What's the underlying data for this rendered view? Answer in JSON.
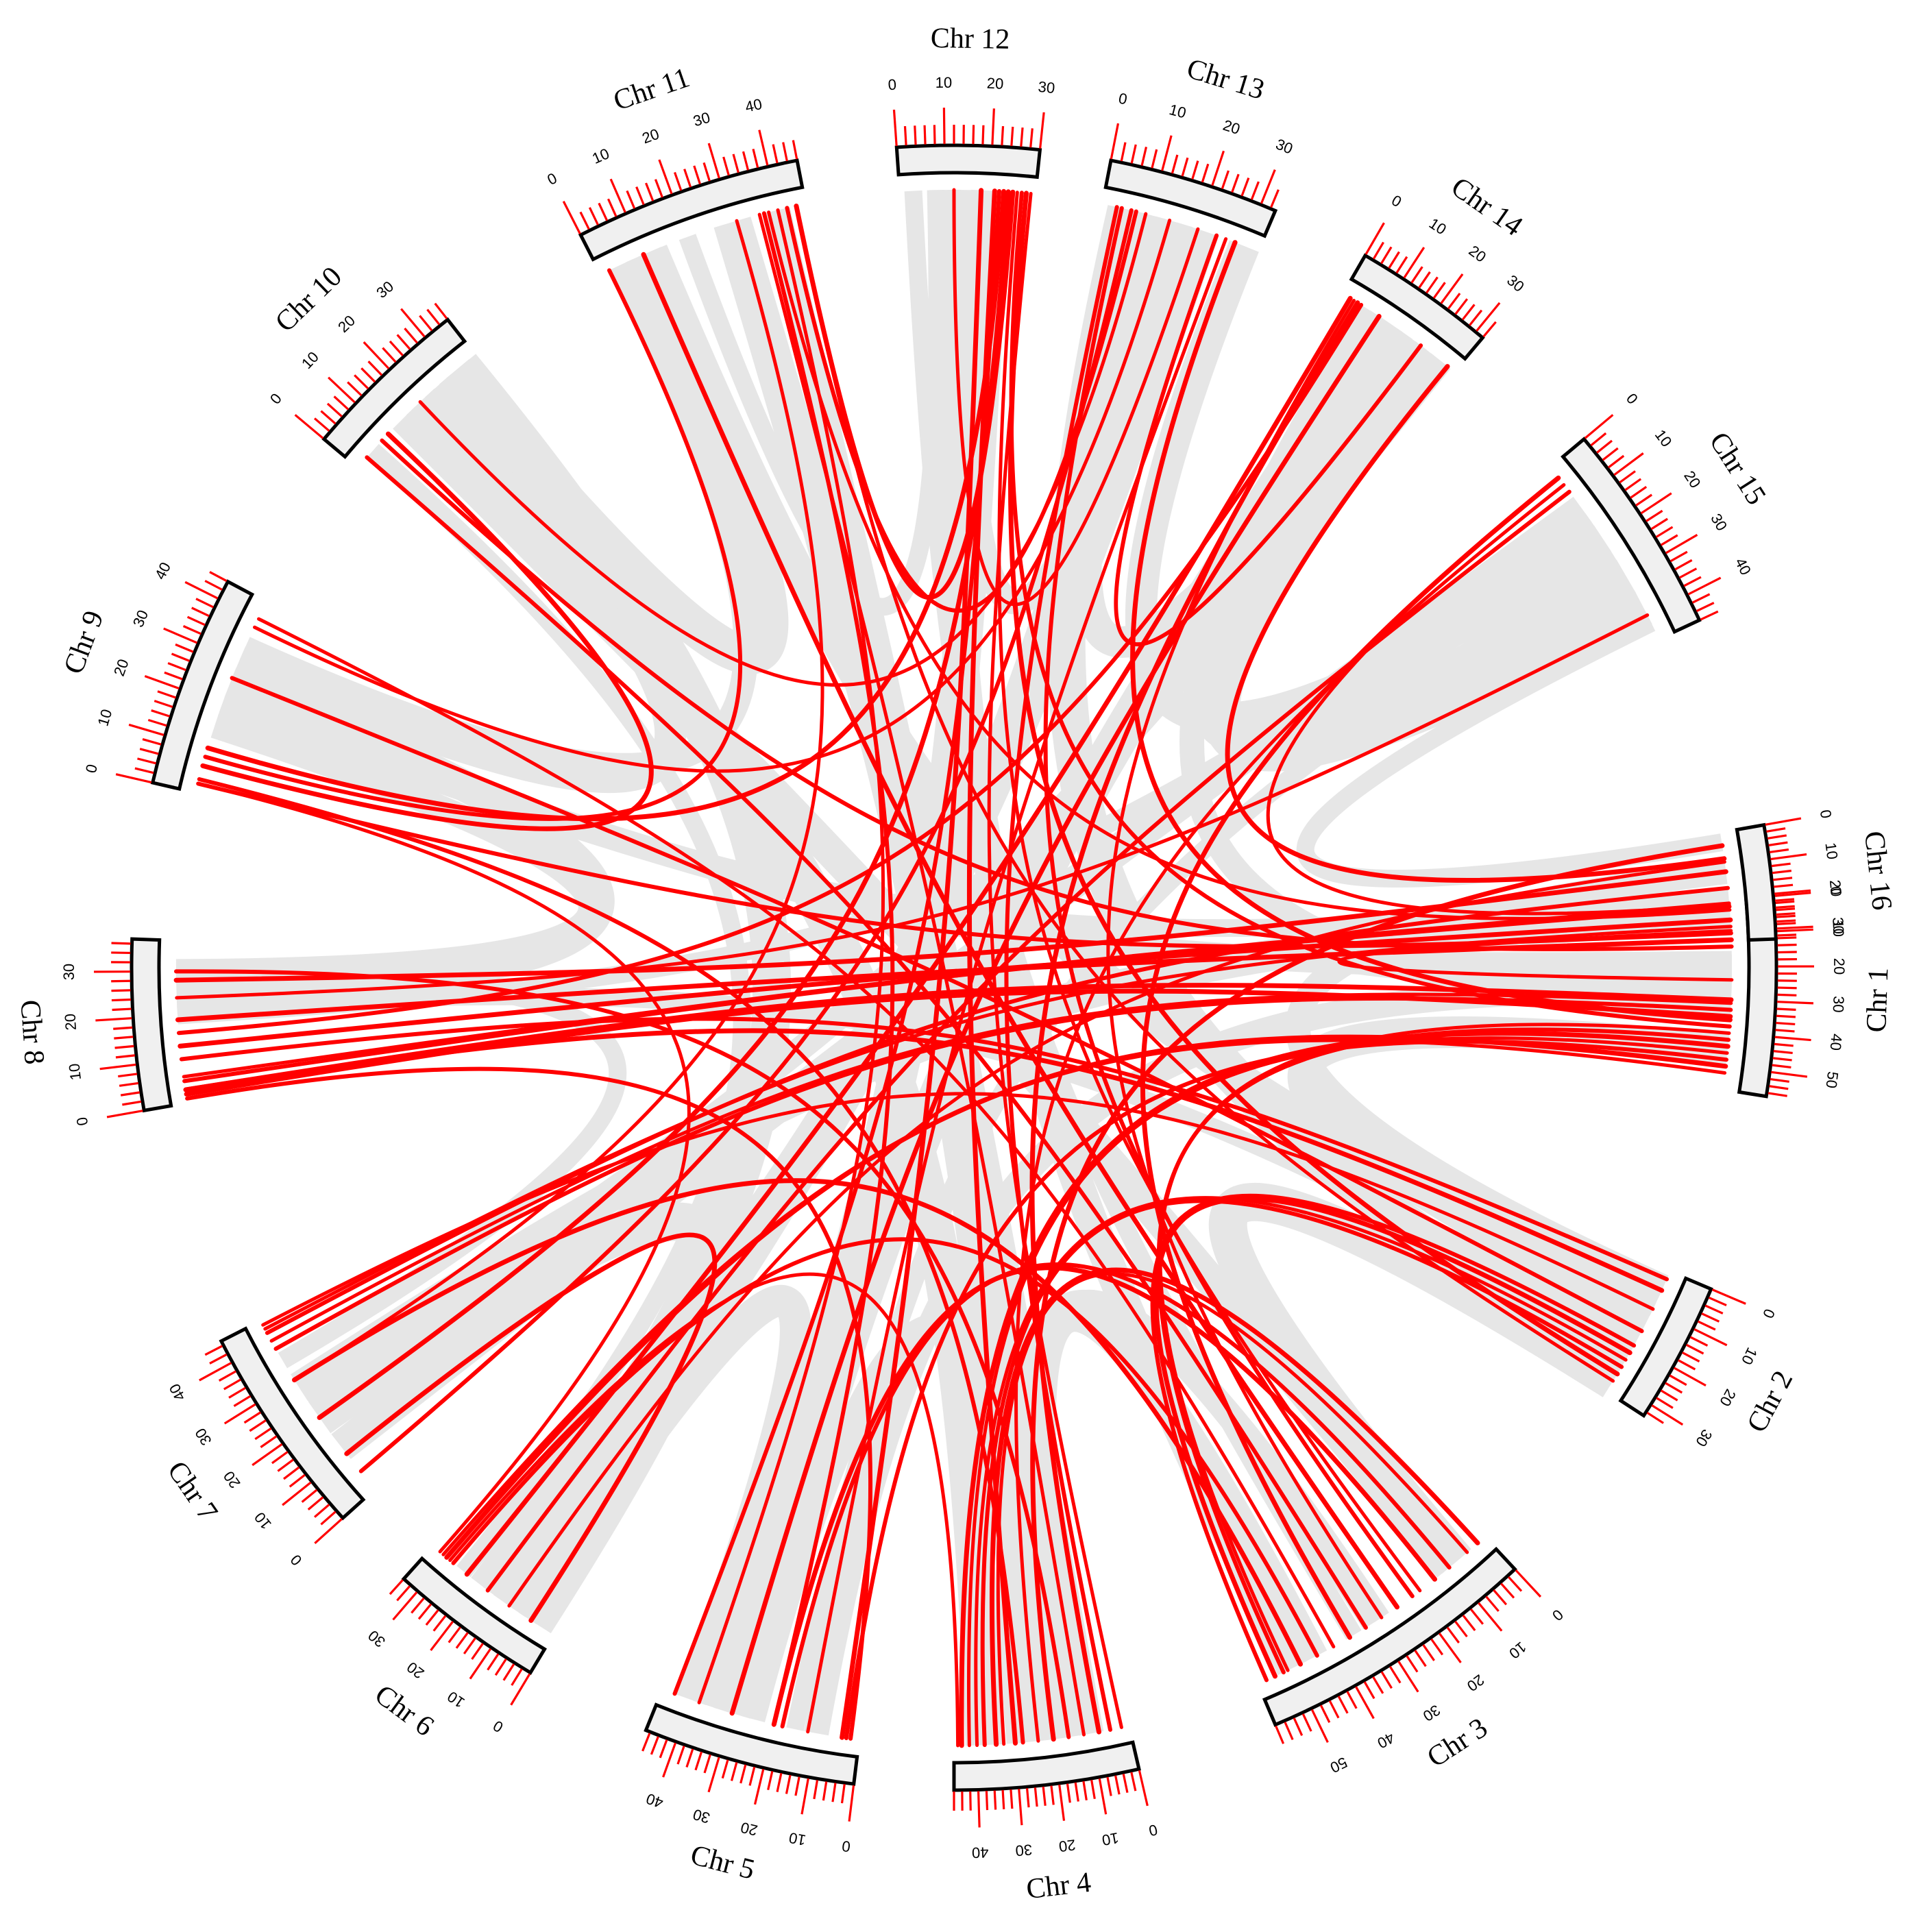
{
  "diagram": {
    "type": "circos-synteny",
    "colors": {
      "chromosome_fill": "#f0f0f0",
      "chromosome_outline": "#000000",
      "tick_color": "#ff0000",
      "background_link_color": "#e6e6e6",
      "highlight_link_color": "#ff0000"
    },
    "chromosomes": [
      {
        "id": "Chr 1",
        "label": "Chr 1",
        "length": 57,
        "ticks": [
          "0",
          "10",
          "20",
          "30",
          "40",
          "50"
        ]
      },
      {
        "id": "Chr 2",
        "label": "Chr 2",
        "length": 33,
        "ticks": [
          "0",
          "10",
          "20",
          "30"
        ]
      },
      {
        "id": "Chr 3",
        "label": "Chr 3",
        "length": 58,
        "ticks": [
          "0",
          "10",
          "20",
          "30",
          "40",
          "50"
        ]
      },
      {
        "id": "Chr 4",
        "label": "Chr 4",
        "length": 46,
        "ticks": [
          "0",
          "10",
          "20",
          "30",
          "40"
        ]
      },
      {
        "id": "Chr 5",
        "label": "Chr 5",
        "length": 47,
        "ticks": [
          "0",
          "10",
          "20",
          "30",
          "40"
        ]
      },
      {
        "id": "Chr 6",
        "label": "Chr 6",
        "length": 34,
        "ticks": [
          "0",
          "10",
          "20",
          "30"
        ]
      },
      {
        "id": "Chr 7",
        "label": "Chr 7",
        "length": 45,
        "ticks": [
          "0",
          "10",
          "20",
          "30",
          "40"
        ]
      },
      {
        "id": "Chr 8",
        "label": "Chr 8",
        "length": 37,
        "ticks": [
          "0",
          "10",
          "20",
          "30"
        ]
      },
      {
        "id": "Chr 9",
        "label": "Chr 9",
        "length": 44,
        "ticks": [
          "0",
          "10",
          "20",
          "30",
          "40"
        ]
      },
      {
        "id": "Chr 10",
        "label": "Chr 10",
        "length": 36,
        "ticks": [
          "0",
          "10",
          "20",
          "30"
        ]
      },
      {
        "id": "Chr 11",
        "label": "Chr 11",
        "length": 46,
        "ticks": [
          "0",
          "10",
          "20",
          "30",
          "40"
        ]
      },
      {
        "id": "Chr 12",
        "label": "Chr 12",
        "length": 30,
        "ticks": [
          "0",
          "10",
          "20",
          "30"
        ]
      },
      {
        "id": "Chr 13",
        "label": "Chr 13",
        "length": 33,
        "ticks": [
          "0",
          "10",
          "20",
          "30"
        ]
      },
      {
        "id": "Chr 14",
        "label": "Chr 14",
        "length": 32,
        "ticks": [
          "0",
          "10",
          "20",
          "30"
        ]
      },
      {
        "id": "Chr 15",
        "label": "Chr 15",
        "length": 46,
        "ticks": [
          "0",
          "10",
          "20",
          "30",
          "40"
        ]
      },
      {
        "id": "Chr 16",
        "label": "Chr 16",
        "length": 33,
        "ticks": [
          "0",
          "10",
          "20",
          "30"
        ]
      }
    ],
    "highlight_links": [
      [
        "Chr 1",
        1,
        "Chr 8",
        6
      ],
      [
        "Chr 1",
        2,
        "Chr 8",
        5
      ],
      [
        "Chr 1",
        6,
        "Chr 8",
        13
      ],
      [
        "Chr 1",
        8,
        "Chr 7",
        43
      ],
      [
        "Chr 1",
        10,
        "Chr 9",
        2
      ],
      [
        "Chr 1",
        12,
        "Chr 8",
        19
      ],
      [
        "Chr 1",
        3,
        "Chr 11",
        38
      ],
      [
        "Chr 1",
        14,
        "Chr 10",
        8
      ],
      [
        "Chr 1",
        30,
        "Chr 8",
        3
      ],
      [
        "Chr 1",
        31,
        "Chr 7",
        40
      ],
      [
        "Chr 1",
        33,
        "Chr 7",
        38
      ],
      [
        "Chr 1",
        35,
        "Chr 8",
        2
      ],
      [
        "Chr 1",
        40,
        "Chr 3",
        51
      ],
      [
        "Chr 1",
        42,
        "Chr 3",
        52
      ],
      [
        "Chr 1",
        44,
        "Chr 4",
        44
      ],
      [
        "Chr 1",
        46,
        "Chr 4",
        42
      ],
      [
        "Chr 1",
        48,
        "Chr 5",
        3
      ],
      [
        "Chr 1",
        50,
        "Chr 6",
        30
      ],
      [
        "Chr 1",
        52,
        "Chr 6",
        31
      ],
      [
        "Chr 1",
        38,
        "Chr 12",
        27
      ],
      [
        "Chr 1",
        36,
        "Chr 13",
        28
      ],
      [
        "Chr 1",
        24,
        "Chr 16",
        30
      ],
      [
        "Chr 2",
        2,
        "Chr 8",
        10
      ],
      [
        "Chr 2",
        5,
        "Chr 8",
        3
      ],
      [
        "Chr 2",
        10,
        "Chr 7",
        44
      ],
      [
        "Chr 2",
        20,
        "Chr 3",
        56
      ],
      [
        "Chr 2",
        22,
        "Chr 3",
        54
      ],
      [
        "Chr 2",
        24,
        "Chr 4",
        40
      ],
      [
        "Chr 2",
        26,
        "Chr 4",
        38
      ],
      [
        "Chr 2",
        28,
        "Chr 12",
        28
      ],
      [
        "Chr 2",
        30,
        "Chr 11",
        44
      ],
      [
        "Chr 2",
        16,
        "Chr 9",
        26
      ],
      [
        "Chr 3",
        2,
        "Chr 4",
        35
      ],
      [
        "Chr 3",
        5,
        "Chr 4",
        33
      ],
      [
        "Chr 3",
        10,
        "Chr 5",
        18
      ],
      [
        "Chr 3",
        14,
        "Chr 5",
        20
      ],
      [
        "Chr 3",
        18,
        "Chr 12",
        26
      ],
      [
        "Chr 3",
        20,
        "Chr 13",
        4
      ],
      [
        "Chr 3",
        24,
        "Chr 11",
        10
      ],
      [
        "Chr 3",
        28,
        "Chr 14",
        3
      ],
      [
        "Chr 3",
        32,
        "Chr 10",
        3
      ],
      [
        "Chr 3",
        36,
        "Chr 15",
        3
      ],
      [
        "Chr 3",
        40,
        "Chr 9",
        40
      ],
      [
        "Chr 3",
        44,
        "Chr 6",
        28
      ],
      [
        "Chr 3",
        48,
        "Chr 7",
        30
      ],
      [
        "Chr 4",
        2,
        "Chr 12",
        29
      ],
      [
        "Chr 4",
        5,
        "Chr 13",
        3
      ],
      [
        "Chr 4",
        8,
        "Chr 14",
        4
      ],
      [
        "Chr 4",
        12,
        "Chr 11",
        36
      ],
      [
        "Chr 4",
        16,
        "Chr 8",
        30
      ],
      [
        "Chr 4",
        20,
        "Chr 16",
        4
      ],
      [
        "Chr 4",
        24,
        "Chr 15",
        5
      ],
      [
        "Chr 4",
        28,
        "Chr 9",
        3
      ],
      [
        "Chr 4",
        30,
        "Chr 12",
        21
      ],
      [
        "Chr 4",
        45,
        "Chr 6",
        29
      ],
      [
        "Chr 5",
        2,
        "Chr 8",
        1
      ],
      [
        "Chr 5",
        4,
        "Chr 12",
        18
      ],
      [
        "Chr 5",
        12,
        "Chr 13",
        26
      ],
      [
        "Chr 5",
        20,
        "Chr 11",
        37
      ],
      [
        "Chr 5",
        30,
        "Chr 14",
        10
      ],
      [
        "Chr 5",
        38,
        "Chr 11",
        40
      ],
      [
        "Chr 5",
        44,
        "Chr 12",
        22
      ],
      [
        "Chr 6",
        6,
        "Chr 7",
        10
      ],
      [
        "Chr 6",
        12,
        "Chr 16",
        9
      ],
      [
        "Chr 6",
        18,
        "Chr 15",
        7
      ],
      [
        "Chr 6",
        24,
        "Chr 14",
        2
      ],
      [
        "Chr 6",
        32,
        "Chr 9",
        2
      ],
      [
        "Chr 7",
        5,
        "Chr 13",
        6
      ],
      [
        "Chr 7",
        20,
        "Chr 12",
        24
      ],
      [
        "Chr 7",
        30,
        "Chr 11",
        31
      ],
      [
        "Chr 7",
        42,
        "Chr 16",
        17
      ],
      [
        "Chr 8",
        28,
        "Chr 16",
        12
      ],
      [
        "Chr 8",
        24,
        "Chr 15",
        40
      ],
      [
        "Chr 8",
        16,
        "Chr 14",
        5
      ],
      [
        "Chr 9",
        10,
        "Chr 12",
        23
      ],
      [
        "Chr 9",
        38,
        "Chr 13",
        14
      ],
      [
        "Chr 9",
        8,
        "Chr 11",
        2
      ],
      [
        "Chr 10",
        10,
        "Chr 9",
        6
      ],
      [
        "Chr 10",
        20,
        "Chr 13",
        9
      ],
      [
        "Chr 11",
        42,
        "Chr 13",
        7
      ],
      [
        "Chr 11",
        44,
        "Chr 12",
        25
      ],
      [
        "Chr 12",
        12,
        "Chr 13",
        20
      ],
      [
        "Chr 13",
        24,
        "Chr 14",
        22
      ],
      [
        "Chr 14",
        30,
        "Chr 16",
        8
      ],
      [
        "Chr 15",
        3,
        "Chr 16",
        22
      ]
    ],
    "background_links": [
      [
        "Chr 12",
        3,
        "Chr 3",
        35
      ],
      [
        "Chr 11",
        40,
        "Chr 4",
        10
      ],
      [
        "Chr 13",
        30,
        "Chr 15",
        20
      ],
      [
        "Chr 14",
        25,
        "Chr 15",
        38
      ],
      [
        "Chr 16",
        28,
        "Chr 1",
        18
      ],
      [
        "Chr 16",
        12,
        "Chr 2",
        4
      ],
      [
        "Chr 1",
        45,
        "Chr 2",
        12
      ],
      [
        "Chr 2",
        30,
        "Chr 3",
        8
      ],
      [
        "Chr 3",
        28,
        "Chr 4",
        30
      ],
      [
        "Chr 4",
        10,
        "Chr 5",
        25
      ],
      [
        "Chr 5",
        40,
        "Chr 6",
        8
      ],
      [
        "Chr 6",
        5,
        "Chr 7",
        20
      ],
      [
        "Chr 7",
        35,
        "Chr 8",
        30
      ],
      [
        "Chr 8",
        30,
        "Chr 9",
        15
      ],
      [
        "Chr 9",
        30,
        "Chr 10",
        25
      ],
      [
        "Chr 10",
        30,
        "Chr 11",
        10
      ],
      [
        "Chr 11",
        20,
        "Chr 12",
        8
      ],
      [
        "Chr 12",
        15,
        "Chr 13",
        18
      ],
      [
        "Chr 13",
        10,
        "Chr 14",
        20
      ],
      [
        "Chr 14",
        15,
        "Chr 15",
        30
      ],
      [
        "Chr 15",
        42,
        "Chr 16",
        3
      ],
      [
        "Chr 1",
        20,
        "Chr 9",
        20
      ],
      [
        "Chr 3",
        10,
        "Chr 10",
        15
      ],
      [
        "Chr 5",
        30,
        "Chr 14",
        12
      ],
      [
        "Chr 2",
        18,
        "Chr 8",
        22
      ],
      [
        "Chr 6",
        20,
        "Chr 13",
        22
      ],
      [
        "Chr 7",
        12,
        "Chr 15",
        12
      ],
      [
        "Chr 4",
        25,
        "Chr 11",
        30
      ],
      [
        "Chr 9",
        20,
        "Chr 16",
        20
      ],
      [
        "Chr 1",
        28,
        "Chr 5",
        10
      ],
      [
        "Chr 3",
        50,
        "Chr 12",
        10
      ],
      [
        "Chr 10",
        20,
        "Chr 4",
        38
      ],
      [
        "Chr 8",
        20,
        "Chr 15",
        15
      ],
      [
        "Chr 7",
        25,
        "Chr 14",
        28
      ],
      [
        "Chr 11",
        12,
        "Chr 2",
        8
      ],
      [
        "Chr 13",
        15,
        "Chr 6",
        12
      ],
      [
        "Chr 1",
        25,
        "Chr 16",
        24
      ],
      [
        "Chr 3",
        30,
        "Chr 4",
        20
      ],
      [
        "Chr 9",
        25,
        "Chr 8",
        25
      ],
      [
        "Chr 12",
        20,
        "Chr 5",
        35
      ],
      [
        "Chr 10",
        5,
        "Chr 6",
        25
      ],
      [
        "Chr 14",
        8,
        "Chr 1",
        33
      ],
      [
        "Chr 16",
        22,
        "Chr 7",
        28
      ],
      [
        "Chr 2",
        25,
        "Chr 13",
        5
      ],
      [
        "Chr 15",
        25,
        "Chr 5",
        15
      ],
      [
        "Chr 11",
        5,
        "Chr 9",
        33
      ],
      [
        "Chr 4",
        15,
        "Chr 3",
        45
      ],
      [
        "Chr 6",
        15,
        "Chr 10",
        32
      ]
    ]
  }
}
